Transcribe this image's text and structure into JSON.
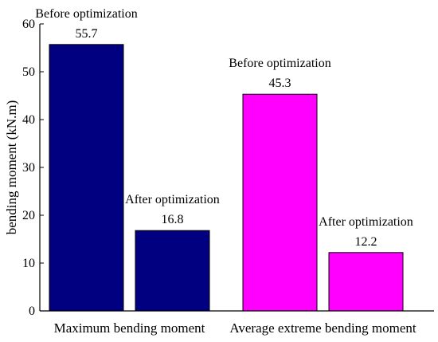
{
  "chart_data": {
    "type": "bar",
    "ylabel": "bending moment (kN.m)",
    "xlabel": "",
    "ylim": [
      0,
      60
    ],
    "yticks": [
      0,
      10,
      20,
      30,
      40,
      50,
      60
    ],
    "grid": false,
    "categories": [
      "Maximum bending moment",
      "Average extreme bending moment"
    ],
    "groups": [
      {
        "category": "Maximum bending moment",
        "color": "#000080",
        "bars": [
          {
            "label": "Before optimization",
            "value": 55.7,
            "value_label": "55.7"
          },
          {
            "label": "After optimization",
            "value": 16.8,
            "value_label": "16.8"
          }
        ]
      },
      {
        "category": "Average extreme bending moment",
        "color": "#ff00ff",
        "bars": [
          {
            "label": "Before optimization",
            "value": 45.3,
            "value_label": "45.3"
          },
          {
            "label": "After optimization",
            "value": 12.2,
            "value_label": "12.2"
          }
        ]
      }
    ]
  }
}
